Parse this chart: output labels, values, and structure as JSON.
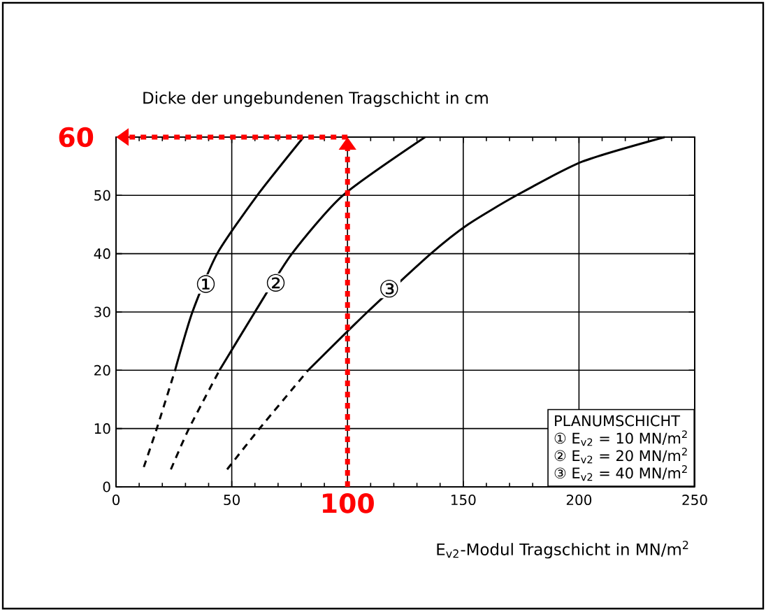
{
  "chart_data": {
    "type": "line",
    "ylabel": "Dicke der ungebundenen Tragschicht in cm",
    "xlabel": "E$_{v2}$-Modul Tragschicht in MN/m$^{2}$",
    "legend_title": "PLANUMSCHICHT",
    "xlim": [
      0,
      250
    ],
    "ylim": [
      0,
      60
    ],
    "xticks": [
      0,
      50,
      {
        "value": 100,
        "label": null
      },
      150,
      200,
      250
    ],
    "yticks": [
      0,
      10,
      20,
      30,
      40,
      50,
      {
        "value": 60,
        "label": null
      }
    ],
    "grid": true,
    "marker": "none",
    "series": [
      {
        "color": "#000000",
        "line_style": "dashed",
        "x": [
          12,
          17.6,
          25.5
        ],
        "values": [
          3.4,
          10,
          20
        ]
      },
      {
        "color": "#000000",
        "line_style": "solid",
        "x": [
          25.5,
          33,
          43.7,
          61,
          81
        ],
        "values": [
          20,
          30,
          40,
          50,
          60
        ]
      },
      {
        "color": "#000000",
        "line_style": "dashed",
        "x": [
          23.7,
          31.5,
          44.7
        ],
        "values": [
          3,
          10,
          20
        ]
      },
      {
        "color": "#000000",
        "line_style": "solid",
        "x": [
          44.7,
          60,
          76,
          98,
          133.5
        ],
        "values": [
          20,
          30,
          40,
          50,
          60
        ]
      },
      {
        "color": "#000000",
        "line_style": "dashed",
        "x": [
          48,
          62,
          83
        ],
        "values": [
          3,
          10,
          20
        ]
      },
      {
        "color": "#000000",
        "line_style": "solid",
        "x": [
          83,
          108.6,
          136,
          152,
          173,
          201.5,
          237
        ],
        "values": [
          20,
          30,
          40,
          45,
          50,
          55.8,
          60
        ]
      }
    ],
    "annotations": [
      {
        "text": "①",
        "x": 38.8,
        "y": 34.8
      },
      {
        "text": "②",
        "x": 69,
        "y": 35
      },
      {
        "text": "③",
        "x": 118,
        "y": 34
      },
      "① E$_{v2}$ = 10 MN/m$^{2}$",
      "② E$_{v2}$ = 20 MN/m$^{2}$",
      "③ E$_{v2}$ = 40 MN/m$^{2}$"
    ],
    "ref_lines": [
      {
        "axis": "x",
        "value": 100,
        "label": "100",
        "color": "#ff0000",
        "line_style": "dotted"
      },
      {
        "axis": "y",
        "value": 60,
        "label": "60",
        "color": "#ff0000",
        "line_style": "dotted"
      }
    ]
  }
}
